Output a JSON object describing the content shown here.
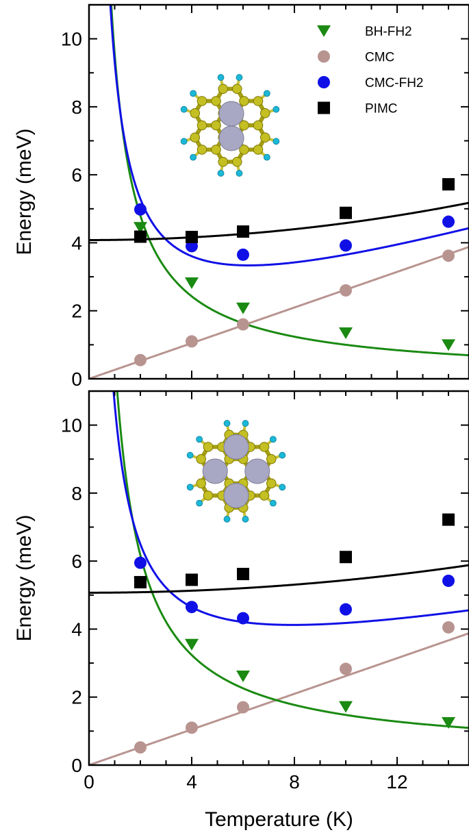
{
  "colors": {
    "BH-FH2": "#1a8a12",
    "CMC": "#b89490",
    "CMC-FH2": "#1010e6",
    "PIMC": "#000000"
  },
  "chart_data": [
    {
      "type": "scatter",
      "ylabel": "Energy (meV)",
      "xlabel": "",
      "xlim": [
        0,
        14.8
      ],
      "ylim": [
        0,
        11
      ],
      "xticks": [
        "0",
        "4",
        "8",
        "12"
      ],
      "xtick_values": [
        0,
        4,
        8,
        12
      ],
      "yticks": [
        "0",
        "2",
        "4",
        "6",
        "8",
        "10"
      ],
      "ytick_values": [
        0,
        2,
        4,
        6,
        8,
        10
      ],
      "show_x_tick_labels": false,
      "legend": {
        "position": "top-right",
        "entries": [
          "BH-FH2",
          "CMC",
          "CMC-FH2",
          "PIMC"
        ]
      },
      "inset_molecule_adatoms": 2,
      "series": [
        {
          "name": "BH-FH2",
          "marker": "triangle-down",
          "x": [
            2,
            4,
            6,
            10,
            14
          ],
          "y": [
            4.45,
            2.82,
            2.08,
            1.35,
            1.0
          ]
        },
        {
          "name": "CMC",
          "marker": "circle",
          "x": [
            2,
            4,
            6,
            10,
            14
          ],
          "y": [
            0.55,
            1.1,
            1.6,
            2.6,
            3.62
          ]
        },
        {
          "name": "CMC-FH2",
          "marker": "circle",
          "x": [
            2,
            4,
            6,
            10,
            14
          ],
          "y": [
            4.98,
            3.9,
            3.65,
            3.92,
            4.62
          ]
        },
        {
          "name": "PIMC",
          "marker": "square",
          "x": [
            2,
            4,
            6,
            10,
            14
          ],
          "y": [
            4.18,
            4.17,
            4.33,
            4.88,
            5.72
          ]
        }
      ],
      "fits": [
        {
          "series": "BH-FH2",
          "model": "a/T+b",
          "a": 9.5,
          "b": 0.05
        },
        {
          "series": "CMC",
          "model": "linear",
          "slope": 0.262,
          "intercept": 0.0
        },
        {
          "series": "CMC-FH2",
          "model": "a/T+b*T+c",
          "a": 8.5,
          "b": 0.22,
          "c": 0.6
        },
        {
          "series": "PIMC",
          "model": "c+d*T^2",
          "c": 4.08,
          "d": 0.005
        }
      ]
    },
    {
      "type": "scatter",
      "ylabel": "Energy (meV)",
      "xlabel": "Temperature (K)",
      "xlim": [
        0,
        14.8
      ],
      "ylim": [
        0,
        11
      ],
      "xticks": [
        "0",
        "4",
        "8",
        "12"
      ],
      "xtick_values": [
        0,
        4,
        8,
        12
      ],
      "yticks": [
        "0",
        "2",
        "4",
        "6",
        "8",
        "10"
      ],
      "ytick_values": [
        0,
        2,
        4,
        6,
        8,
        10
      ],
      "show_x_tick_labels": true,
      "inset_molecule_adatoms": 4,
      "series": [
        {
          "name": "BH-FH2",
          "marker": "triangle-down",
          "x": [
            2,
            4,
            6,
            10,
            14
          ],
          "y": [
            5.38,
            3.55,
            2.62,
            1.72,
            1.25
          ]
        },
        {
          "name": "CMC",
          "marker": "circle",
          "x": [
            2,
            4,
            6,
            10,
            14
          ],
          "y": [
            0.52,
            1.1,
            1.7,
            2.83,
            4.05
          ]
        },
        {
          "name": "CMC-FH2",
          "marker": "circle",
          "x": [
            2,
            4,
            6,
            10,
            14
          ],
          "y": [
            5.95,
            4.65,
            4.32,
            4.58,
            5.42
          ]
        },
        {
          "name": "PIMC",
          "marker": "square",
          "x": [
            2,
            4,
            6,
            10,
            14
          ],
          "y": [
            5.38,
            5.45,
            5.62,
            6.12,
            7.22
          ]
        }
      ],
      "fits": [
        {
          "series": "BH-FH2",
          "model": "a/T+b",
          "a": 11.75,
          "b": 0.3
        },
        {
          "series": "CMC",
          "model": "linear",
          "slope": 0.262,
          "intercept": 0.0
        },
        {
          "series": "CMC-FH2",
          "model": "a/T+b*T+c",
          "a": 8.5,
          "b": 0.135,
          "c": 1.98
        },
        {
          "series": "PIMC",
          "model": "c+d*T^2",
          "c": 5.07,
          "d": 0.0037
        }
      ]
    }
  ]
}
